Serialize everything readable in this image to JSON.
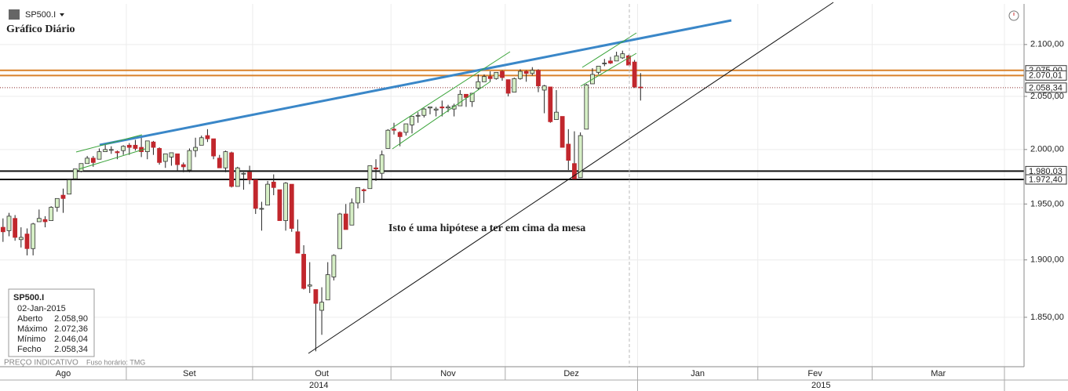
{
  "header": {
    "symbol": "SP500.I",
    "title": "Gráfico Diário"
  },
  "chart_data": {
    "type": "candlestick",
    "log_scale": true,
    "grid": true,
    "ylim": [
      1808,
      2140
    ],
    "yticks": [
      {
        "value": 1850,
        "label": "1.850,00"
      },
      {
        "value": 1900,
        "label": "1.900,00"
      },
      {
        "value": 1950,
        "label": "1.950,00"
      },
      {
        "value": 2000,
        "label": "2.000,00"
      },
      {
        "value": 2050,
        "label": "2.050,00"
      },
      {
        "value": 2100,
        "label": "2.100,00"
      }
    ],
    "up_color": "#d6efc6",
    "down_color": "#c1272d",
    "series": [
      {
        "open": [
          1929,
          1926,
          1937,
          1918,
          1923,
          1910,
          1934,
          1936,
          1935,
          1947,
          1958,
          1959,
          1973,
          1980,
          1987,
          1992,
          1991,
          1998,
          2000,
          1998,
          1999,
          2004,
          2004,
          2002,
          1998,
          2007,
          2001,
          1989,
          1993,
          1996,
          1986,
          1981,
          1999,
          2004,
          2013,
          2010,
          1992,
          1983,
          1997,
          1966,
          1978,
          1979,
          1972,
          1946,
          1949,
          1970,
          1963,
          1935,
          1968,
          1925,
          1905,
          1877,
          1874,
          1856,
          1865,
          1885,
          1910,
          1941,
          1931,
          1951,
          1963,
          1964,
          1983,
          1978,
          2001,
          2019,
          2016,
          2016,
          2023,
          2032,
          2032,
          2039,
          2037,
          2040,
          2039,
          2038,
          2041,
          2052,
          2045,
          2058,
          2064,
          2069,
          2067,
          2074,
          2066,
          2054,
          2067,
          2074,
          2072,
          2075,
          2056,
          2059,
          2028,
          2031,
          2005,
          1987,
          1974,
          2019,
          2062,
          2073,
          2082,
          2084,
          2084,
          2087,
          2089,
          2083,
          2058.9
        ],
        "high": [
          1937,
          1942,
          1940,
          1929,
          1928,
          1933,
          1945,
          1939,
          1948,
          1955,
          1964,
          1972,
          1982,
          1987,
          1994,
          1994,
          2001,
          2005,
          2003,
          1999,
          2004,
          2006,
          2009,
          2011,
          2008,
          2008,
          2002,
          1996,
          1997,
          1996,
          1988,
          2001,
          2011,
          2013,
          2019,
          2010,
          1995,
          1999,
          1998,
          1984,
          1979,
          1985,
          1972,
          1952,
          1971,
          1977,
          1963,
          1970,
          1968,
          1936,
          1913,
          1898,
          1874,
          1876,
          1898,
          1905,
          1942,
          1950,
          1955,
          1965,
          1964,
          1985,
          1991,
          1999,
          2019,
          2025,
          2017,
          2024,
          2031,
          2035,
          2039,
          2040,
          2040,
          2046,
          2042,
          2043,
          2056,
          2052,
          2053,
          2071,
          2071,
          2074,
          2073,
          2075,
          2066,
          2068,
          2076,
          2075,
          2078,
          2076,
          2061,
          2059,
          2056,
          2031,
          2019,
          2017,
          2016,
          2062,
          2077,
          2079,
          2086,
          2088,
          2093,
          2094,
          2090,
          2085,
          2072.36
        ],
        "low": [
          1916,
          1921,
          1917,
          1911,
          1904,
          1904,
          1934,
          1929,
          1935,
          1943,
          1942,
          1959,
          1973,
          1979,
          1987,
          1984,
          1991,
          1998,
          1996,
          1991,
          1995,
          1995,
          1999,
          1993,
          1991,
          1995,
          1986,
          1983,
          1985,
          1980,
          1979,
          1979,
          1993,
          2004,
          2007,
          1991,
          1983,
          1979,
          1965,
          1966,
          1963,
          1968,
          1941,
          1926,
          1949,
          1958,
          1935,
          1926,
          1925,
          1906,
          1874,
          1871,
          1821,
          1835,
          1865,
          1882,
          1910,
          1927,
          1931,
          1946,
          1951,
          1964,
          1971,
          1973,
          2001,
          2014,
          2003,
          2013,
          2015,
          2025,
          2030,
          2033,
          2031,
          2031,
          2035,
          2031,
          2041,
          2040,
          2040,
          2056,
          2064,
          2064,
          2066,
          2065,
          2050,
          2054,
          2066,
          2064,
          2070,
          2054,
          2034,
          2025,
          2028,
          2002,
          1981,
          1973,
          1974,
          2019,
          2062,
          2071,
          2079,
          2081,
          2084,
          2086,
          2080,
          2058,
          2046.04
        ],
        "close": [
          1925,
          1939,
          1920,
          1920,
          1910,
          1932,
          1937,
          1934,
          1947,
          1955,
          1955,
          1972,
          1982,
          1987,
          1992,
          1988,
          1998,
          2000,
          2000,
          1997,
          2003,
          2002,
          2001,
          1998,
          2008,
          2002,
          1988,
          1996,
          1997,
          1986,
          1984,
          1999,
          2002,
          2011,
          2010,
          1994,
          1983,
          1998,
          1966,
          1983,
          1978,
          1972,
          1946,
          1946,
          1968,
          1965,
          1935,
          1969,
          1928,
          1906,
          1875,
          1878,
          1862,
          1863,
          1887,
          1904,
          1941,
          1927,
          1951,
          1965,
          1962,
          1985,
          1982,
          1995,
          2018,
          2018,
          2012,
          2024,
          2031,
          2032,
          2038,
          2040,
          2038,
          2039,
          2040,
          2041,
          2052,
          2049,
          2053,
          2064,
          2069,
          2067,
          2073,
          2068,
          2053,
          2067,
          2074,
          2072,
          2075,
          2060,
          2060,
          2026,
          2035,
          2002,
          1990,
          1973,
          2013,
          2061,
          2071,
          2079,
          2082,
          2082,
          2089,
          2091,
          2080,
          2059,
          2058.34
        ]
      }
    ],
    "months": [
      {
        "label": "Ago",
        "trading_days": 21
      },
      {
        "label": "Set",
        "trading_days": 21
      },
      {
        "label": "Out",
        "trading_days": 23
      },
      {
        "label": "Nov",
        "trading_days": 19
      },
      {
        "label": "Dez",
        "trading_days": 22
      },
      {
        "label": "Jan",
        "trading_days": 20
      },
      {
        "label": "Fev",
        "trading_days": 19
      },
      {
        "label": "Mar",
        "trading_days": 22
      }
    ],
    "years": [
      {
        "label": "2014",
        "months": 5
      },
      {
        "label": "2015",
        "months": 3
      }
    ],
    "levels": [
      {
        "value": 2075,
        "label": "2.075,00",
        "color": "#d9822b",
        "style": "solid"
      },
      {
        "value": 2070.01,
        "label": "2.070,01",
        "color": "#d9822b",
        "style": "solid"
      },
      {
        "value": 2058.34,
        "label": "2.058,34",
        "color": "#8b2a2a",
        "style": "dotted"
      },
      {
        "value": 1980.03,
        "label": "1.980,03",
        "color": "#111111",
        "style": "solid"
      },
      {
        "value": 1972.4,
        "label": "1.972,40",
        "color": "#111111",
        "style": "solid"
      }
    ],
    "annotation": "Isto é uma hipótese a ter em cima da mesa"
  },
  "info_box": {
    "symbol": "SP500.I",
    "date": "02-Jan-2015",
    "rows": [
      [
        "Aberto",
        "2.058,90"
      ],
      [
        "Máximo",
        "2.072,36"
      ],
      [
        "Mínimo",
        "2.046,04"
      ],
      [
        "Fecho",
        "2.058,34"
      ]
    ]
  },
  "footer": {
    "note": "PREÇO INDICATIVO",
    "timezone": "Fuso horário: TMG"
  }
}
